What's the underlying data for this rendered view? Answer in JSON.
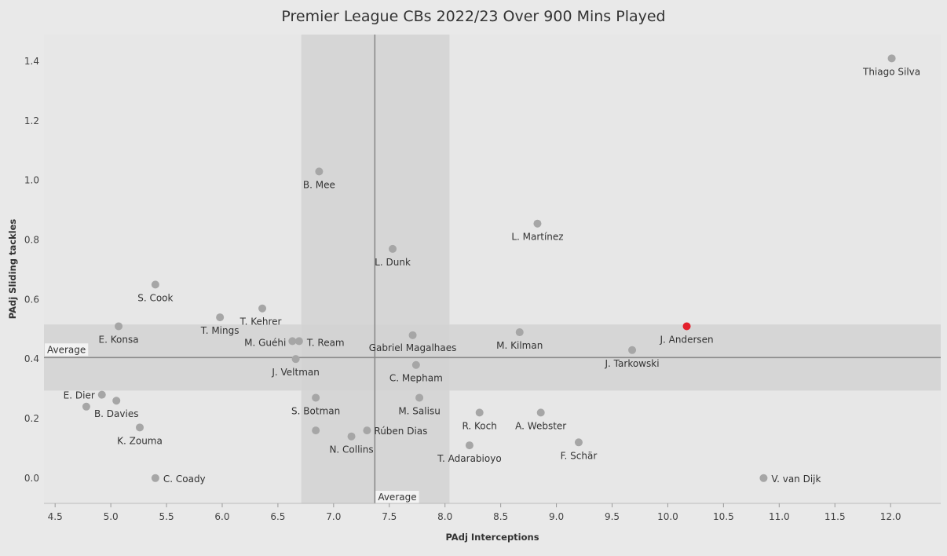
{
  "chart_data": {
    "type": "scatter",
    "title": "Premier League CBs 2022/23 Over 900 Mins Played",
    "xlabel": "PAdj Interceptions",
    "ylabel": "PAdj Sliding tackles",
    "xlim": [
      4.4,
      12.45
    ],
    "ylim": [
      -0.085,
      1.49
    ],
    "x_ticks": [
      "4.5",
      "5.0",
      "5.5",
      "6.0",
      "6.5",
      "7.0",
      "7.5",
      "8.0",
      "8.5",
      "9.0",
      "9.5",
      "10.0",
      "10.5",
      "11.0",
      "11.5",
      "12.0"
    ],
    "y_ticks": [
      "0.0",
      "0.2",
      "0.4",
      "0.6",
      "0.8",
      "1.0",
      "1.2",
      "1.4"
    ],
    "grid": false,
    "reference_lines": {
      "x_average": 7.37,
      "x_average_label": "Average",
      "x_band": [
        6.71,
        8.04
      ],
      "y_average": 0.405,
      "y_average_label": "Average",
      "y_band": [
        0.294,
        0.516
      ]
    },
    "colors": {
      "point": "#a6a6a6",
      "highlight": "#e3202c",
      "band": "#d2d2d2",
      "avg_line": "#8a8a8a"
    },
    "points": [
      {
        "name": "Thiago Silva",
        "x": 12.01,
        "y": 1.41
      },
      {
        "name": "B. Mee",
        "x": 6.87,
        "y": 1.03
      },
      {
        "name": "L. Martínez",
        "x": 8.83,
        "y": 0.855
      },
      {
        "name": "L. Dunk",
        "x": 7.53,
        "y": 0.77
      },
      {
        "name": "S. Cook",
        "x": 5.4,
        "y": 0.65
      },
      {
        "name": "T. Kehrer",
        "x": 6.36,
        "y": 0.57
      },
      {
        "name": "T. Mings",
        "x": 5.98,
        "y": 0.54
      },
      {
        "name": "E. Konsa",
        "x": 5.07,
        "y": 0.51
      },
      {
        "name": "M. Guéhi",
        "x": 6.63,
        "y": 0.46
      },
      {
        "name": "T. Ream",
        "x": 6.69,
        "y": 0.46
      },
      {
        "name": "Gabriel Magalhaes",
        "x": 7.71,
        "y": 0.48
      },
      {
        "name": "M. Kilman",
        "x": 8.67,
        "y": 0.49
      },
      {
        "name": "J. Andersen",
        "x": 10.17,
        "y": 0.51,
        "highlight": true
      },
      {
        "name": "J. Tarkowski",
        "x": 9.68,
        "y": 0.43
      },
      {
        "name": "J. Veltman",
        "x": 6.66,
        "y": 0.4
      },
      {
        "name": "C. Mepham",
        "x": 7.74,
        "y": 0.38
      },
      {
        "name": "E. Dier",
        "x": 4.92,
        "y": 0.28
      },
      {
        "name": "B. Davies",
        "x": 5.05,
        "y": 0.26
      },
      {
        "name": "",
        "x": 4.78,
        "y": 0.24
      },
      {
        "name": "S. Botman",
        "x": 6.84,
        "y": 0.27
      },
      {
        "name": "M. Salisu",
        "x": 7.77,
        "y": 0.27
      },
      {
        "name": "R. Koch",
        "x": 8.31,
        "y": 0.22
      },
      {
        "name": "A. Webster",
        "x": 8.86,
        "y": 0.22
      },
      {
        "name": "K. Zouma",
        "x": 5.26,
        "y": 0.17
      },
      {
        "name": "",
        "x": 6.84,
        "y": 0.16
      },
      {
        "name": "N. Collins",
        "x": 7.16,
        "y": 0.14
      },
      {
        "name": "Rúben Dias",
        "x": 7.3,
        "y": 0.16
      },
      {
        "name": "T. Adarabioyo",
        "x": 8.22,
        "y": 0.11
      },
      {
        "name": "F. Schär",
        "x": 9.2,
        "y": 0.12
      },
      {
        "name": "C. Coady",
        "x": 5.4,
        "y": 0.0
      },
      {
        "name": "V. van Dijk",
        "x": 10.86,
        "y": 0.0
      }
    ]
  }
}
